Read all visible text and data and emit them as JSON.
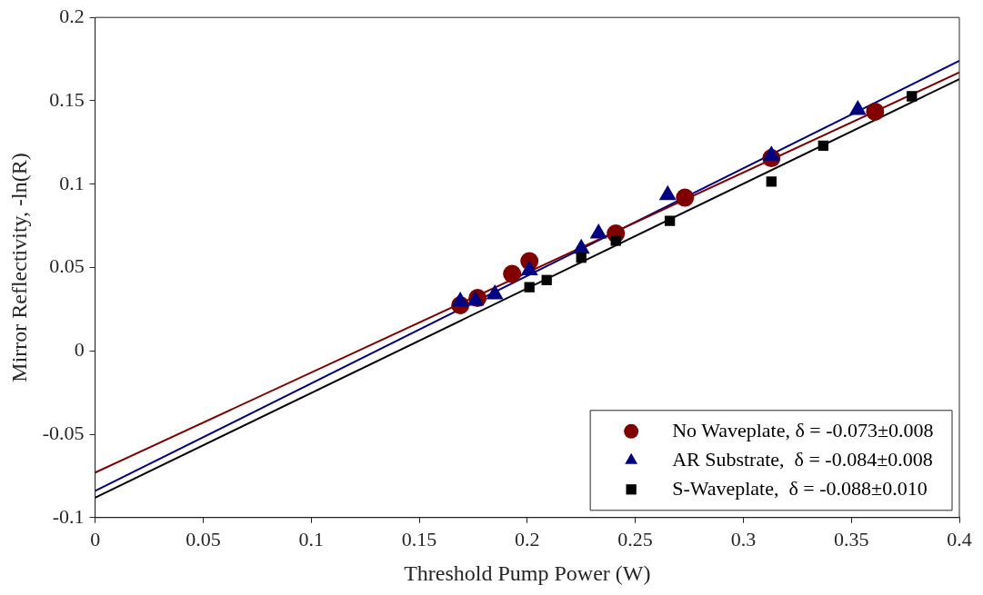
{
  "chart_data": {
    "type": "scatter",
    "xlabel": "Threshold Pump Power (W)",
    "ylabel": "Mirror Reflectivity, -ln(R)",
    "xlim": [
      0,
      0.4
    ],
    "xticks": [
      0,
      0.05,
      0.1,
      0.15,
      0.2,
      0.25,
      0.3,
      0.35,
      0.4
    ],
    "ylim": [
      -0.1,
      0.2
    ],
    "yticks": [
      -0.1,
      -0.05,
      0,
      0.05,
      0.1,
      0.15,
      0.2
    ],
    "grid": false,
    "legend": "bottom right",
    "series": [
      {
        "name": "No Waveplate, δ = -0.073±0.008",
        "color": "#800000",
        "marker": "circle",
        "x": [
          0.169,
          0.177,
          0.193,
          0.201,
          0.241,
          0.273,
          0.313,
          0.361
        ],
        "values": [
          0.0274,
          0.0317,
          0.0462,
          0.0538,
          0.0704,
          0.0919,
          0.1156,
          0.1435
        ]
      },
      {
        "name": "AR Substrate,  δ = -0.084±0.008",
        "color": "#000080",
        "marker": "triangle",
        "x": [
          0.169,
          0.176,
          0.185,
          0.201,
          0.225,
          0.233,
          0.265,
          0.313,
          0.353
        ],
        "values": [
          0.0296,
          0.0301,
          0.0339,
          0.0484,
          0.0613,
          0.0704,
          0.0935,
          0.1172,
          0.1446
        ]
      },
      {
        "name": "S-Waveplate,  δ = -0.088±0.010",
        "color": "#000000",
        "marker": "square",
        "x": [
          0.201,
          0.209,
          0.225,
          0.241,
          0.266,
          0.313,
          0.337,
          0.378
        ],
        "values": [
          0.0382,
          0.0425,
          0.0559,
          0.0661,
          0.078,
          0.1016,
          0.1231,
          0.1527
        ]
      },
      {
        "type": "line",
        "color": "#800000",
        "marker": "none",
        "x": [
          0,
          0.4
        ],
        "values": [
          -0.073,
          0.167
        ]
      },
      {
        "type": "line",
        "color": "#000080",
        "marker": "none",
        "x": [
          0,
          0.4
        ],
        "values": [
          -0.084,
          0.174
        ]
      },
      {
        "type": "line",
        "color": "#000000",
        "marker": "none",
        "x": [
          0,
          0.4
        ],
        "values": [
          -0.088,
          0.163
        ]
      }
    ]
  }
}
